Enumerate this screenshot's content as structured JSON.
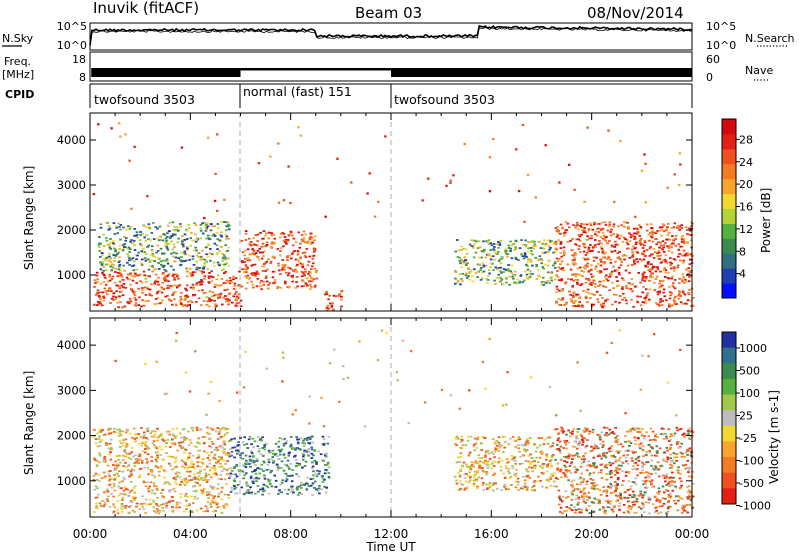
{
  "header": {
    "title": "Inuvik (fitACF)",
    "beam": "Beam 03",
    "date": "08/Nov/2014"
  },
  "noise_panel": {
    "left_label": "N.Sky",
    "left_ticks": [
      "10^5",
      "10^0"
    ],
    "right_label": "N.Search",
    "right_ticks": [
      "10^5",
      "10^0"
    ]
  },
  "freq_panel": {
    "left_label_1": "Freq.",
    "left_label_2": "[MHz]",
    "left_ticks": [
      "18",
      "8"
    ],
    "right_label": "Nave",
    "right_ticks": [
      "60",
      "0"
    ]
  },
  "cpid_panel": {
    "label": "CPID",
    "segments": [
      {
        "start_hour": 0,
        "end_hour": 6,
        "text": "twofsound 3503"
      },
      {
        "start_hour": 6,
        "end_hour": 12,
        "text": "normal (fast) 151"
      },
      {
        "start_hour": 12,
        "end_hour": 24,
        "text": "twofsound 3503"
      }
    ]
  },
  "chart_data": [
    {
      "type": "heatmap",
      "panel": "power",
      "ylabel": "Slant Range [km]",
      "xlabel": "Time UT",
      "xlim": [
        0,
        24
      ],
      "ylim": [
        200,
        4600
      ],
      "x_tick_labels": [
        "00:00",
        "04:00",
        "08:00",
        "12:00",
        "16:00",
        "20:00",
        "00:00"
      ],
      "y_tick_labels": [
        "1000",
        "2000",
        "3000",
        "4000"
      ],
      "y_ticks": [
        1000,
        2000,
        3000,
        4000
      ],
      "colorbar": {
        "label": "Power [dB]",
        "tick_labels": [
          "4",
          "8",
          "12",
          "16",
          "20",
          "24",
          "28"
        ],
        "colors": [
          "#0010ff",
          "#1f3fb2",
          "#2f6f7f",
          "#3c8a4c",
          "#55b13c",
          "#b4d436",
          "#f2d830",
          "#f7a52b",
          "#f37b23",
          "#ee501f",
          "#e42014",
          "#d20a10"
        ]
      },
      "regions": [
        {
          "x": [
            0.1,
            6.0
          ],
          "y": [
            300,
            1100
          ],
          "level": "high"
        },
        {
          "x": [
            0.3,
            5.5
          ],
          "y": [
            1100,
            2200
          ],
          "level": "mid"
        },
        {
          "x": [
            6.0,
            9.0
          ],
          "y": [
            700,
            2000
          ],
          "level": "high"
        },
        {
          "x": [
            9.3,
            10.0
          ],
          "y": [
            250,
            700
          ],
          "level": "high"
        },
        {
          "x": [
            14.5,
            18.5
          ],
          "y": [
            800,
            1800
          ],
          "level": "mid"
        },
        {
          "x": [
            18.5,
            24.0
          ],
          "y": [
            300,
            2200
          ],
          "level": "high"
        }
      ]
    },
    {
      "type": "heatmap",
      "panel": "velocity",
      "ylabel": "Slant Range [km]",
      "xlabel": "Time UT",
      "xlim": [
        0,
        24
      ],
      "ylim": [
        200,
        4600
      ],
      "x_tick_labels": [
        "00:00",
        "04:00",
        "08:00",
        "12:00",
        "16:00",
        "20:00",
        "00:00"
      ],
      "y_tick_labels": [
        "1000",
        "2000",
        "3000",
        "4000"
      ],
      "y_ticks": [
        1000,
        2000,
        3000,
        4000
      ],
      "colorbar": {
        "label": "Velocity [m s-1]",
        "tick_labels": [
          "1000",
          "500",
          "100",
          "25",
          "-25",
          "-100",
          "-500",
          "-1000"
        ],
        "colors": [
          "#2030a0",
          "#2f6f8f",
          "#3c8a4c",
          "#55b13c",
          "#a0c84a",
          "#bdbdbd",
          "#f2d830",
          "#f7a52b",
          "#f37b23",
          "#ee501f",
          "#e42014"
        ]
      },
      "regions": [
        {
          "x": [
            0.1,
            5.5
          ],
          "y": [
            300,
            2200
          ],
          "level": "negative"
        },
        {
          "x": [
            5.5,
            9.5
          ],
          "y": [
            700,
            2000
          ],
          "level": "positive"
        },
        {
          "x": [
            14.5,
            18.5
          ],
          "y": [
            800,
            2000
          ],
          "level": "negative"
        },
        {
          "x": [
            18.5,
            24.0
          ],
          "y": [
            300,
            2200
          ],
          "level": "mixed"
        }
      ]
    }
  ]
}
